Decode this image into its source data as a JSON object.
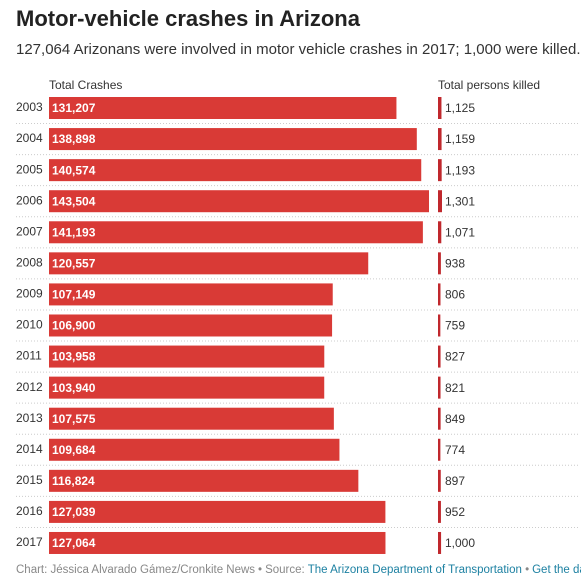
{
  "chart_data": {
    "type": "bar",
    "title": "Motor-vehicle crashes in Arizona",
    "subtitle": "127,064 Arizonans were involved in motor vehicle crashes in 2017; 1,000 were killed.",
    "categories": [
      "2003",
      "2004",
      "2005",
      "2006",
      "2007",
      "2008",
      "2009",
      "2010",
      "2011",
      "2012",
      "2013",
      "2014",
      "2015",
      "2016",
      "2017"
    ],
    "series": [
      {
        "name": "Total Crashes",
        "color": "#d93a36",
        "values": [
          131207,
          138898,
          140574,
          143504,
          141193,
          120557,
          107149,
          106900,
          103958,
          103940,
          107575,
          109684,
          116824,
          127039,
          127064
        ],
        "value_labels": [
          "131,207",
          "138,898",
          "140,574",
          "143,504",
          "141,193",
          "120,557",
          "107,149",
          "106,900",
          "103,958",
          "103,940",
          "107,575",
          "109,684",
          "116,824",
          "127,039",
          "127,064"
        ]
      },
      {
        "name": "Total persons killed",
        "color": "#c0282d",
        "values": [
          1125,
          1159,
          1193,
          1301,
          1071,
          938,
          806,
          759,
          827,
          821,
          849,
          774,
          897,
          952,
          1000
        ],
        "value_labels": [
          "1,125",
          "1,159",
          "1,193",
          "1,301",
          "1,071",
          "938",
          "806",
          "759",
          "827",
          "821",
          "849",
          "774",
          "897",
          "952",
          "1,000"
        ]
      }
    ],
    "footer": {
      "credit": "Chart: Jéssica Alvarado Gámez/Cronkite News",
      "separator": "•",
      "source_label": "Source:",
      "source": "The Arizona Department of Transportation",
      "data_link": "Get the data"
    }
  }
}
